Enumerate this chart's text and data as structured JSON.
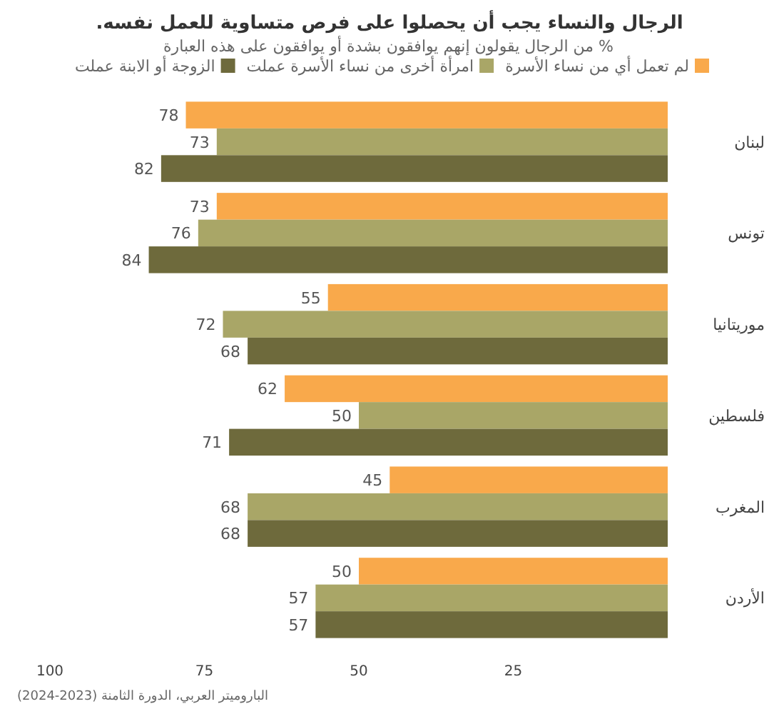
{
  "chart_data": {
    "type": "bar",
    "orientation": "horizontal",
    "title": "الرجال والنساء يجب أن يحصلوا على فرص متساوية للعمل نفسه.",
    "subtitle": "% من الرجال يقولون إنهم يوافقون بشدة أو يوافقون على هذه العبارة",
    "categories": [
      "لبنان",
      "تونس",
      "موريتانيا",
      "فلسطين",
      "المغرب",
      "الأردن"
    ],
    "series": [
      {
        "name": "لم تعمل أي من نساء الأسرة",
        "color": "#f9a94b",
        "values": [
          78,
          73,
          55,
          62,
          45,
          50
        ]
      },
      {
        "name": "امرأة أخرى من نساء الأسرة عملت",
        "color": "#a9a667",
        "values": [
          73,
          76,
          72,
          50,
          68,
          57
        ]
      },
      {
        "name": "الزوجة أو الابنة عملت",
        "color": "#6e6a3c",
        "values": [
          82,
          84,
          68,
          71,
          68,
          57
        ]
      }
    ],
    "xlim": [
      100,
      0
    ],
    "xticks": [
      100,
      75,
      50,
      25
    ],
    "data_labels": true,
    "legend": "top right",
    "grid": false,
    "annotations": [
      "الباروميتر العربي، الدورة الثامنة (2023-2024)"
    ]
  }
}
